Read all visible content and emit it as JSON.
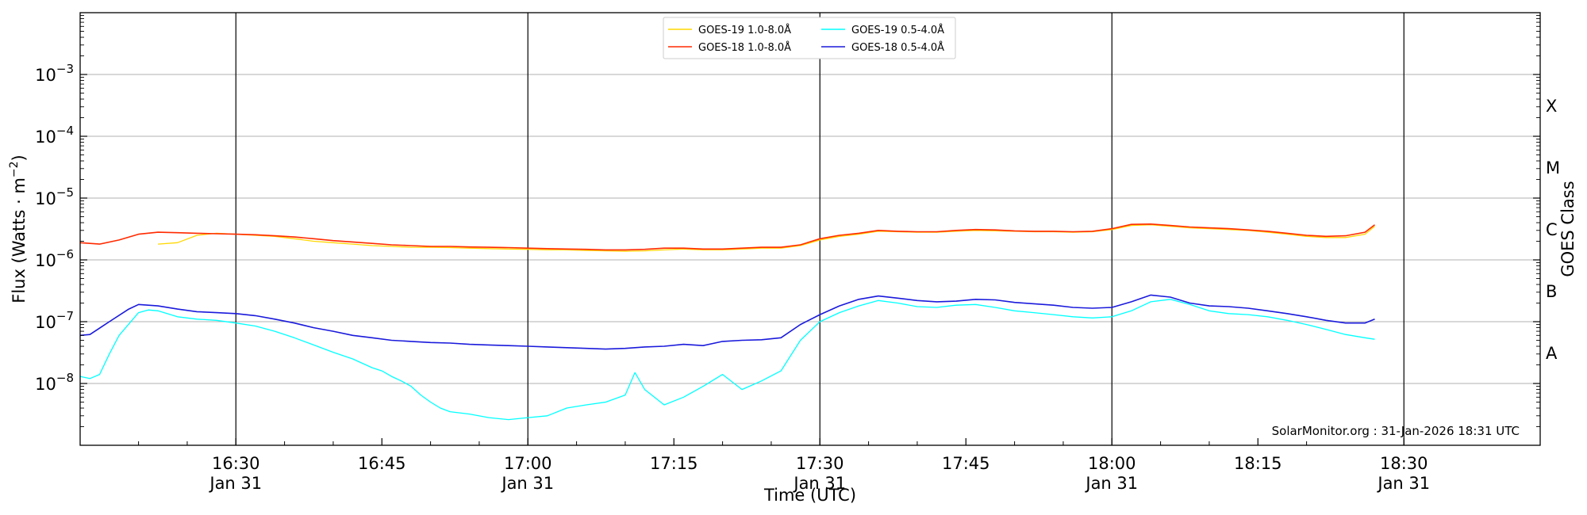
{
  "chart_data": {
    "type": "line",
    "xlabel": "Time (UTC)",
    "ylabel_main": "Flux (Watts · m",
    "ylabel_sup": "−2",
    "ylabel_close": ")",
    "right_label": "GOES Class",
    "y_scale": "log",
    "ylim": [
      1e-09,
      0.01
    ],
    "xlim": [
      "16:14",
      "18:44"
    ],
    "x_ticks": [
      {
        "minute": 30,
        "time": "16:30",
        "date": "Jan 31"
      },
      {
        "minute": 45,
        "time": "16:45",
        "date": ""
      },
      {
        "minute": 60,
        "time": "17:00",
        "date": "Jan 31"
      },
      {
        "minute": 75,
        "time": "17:15",
        "date": ""
      },
      {
        "minute": 90,
        "time": "17:30",
        "date": "Jan 31"
      },
      {
        "minute": 105,
        "time": "17:45",
        "date": ""
      },
      {
        "minute": 120,
        "time": "18:00",
        "date": "Jan 31"
      },
      {
        "minute": 135,
        "time": "18:15",
        "date": ""
      },
      {
        "minute": 150,
        "time": "18:30",
        "date": "Jan 31"
      }
    ],
    "y_ticks": [
      {
        "exp": -8,
        "base": "10",
        "sup": "−8"
      },
      {
        "exp": -7,
        "base": "10",
        "sup": "−7"
      },
      {
        "exp": -6,
        "base": "10",
        "sup": "−6"
      },
      {
        "exp": -5,
        "base": "10",
        "sup": "−5"
      },
      {
        "exp": -4,
        "base": "10",
        "sup": "−4"
      },
      {
        "exp": -3,
        "base": "10",
        "sup": "−3"
      }
    ],
    "goes_classes": [
      {
        "label": "A",
        "exp": -7.5
      },
      {
        "label": "B",
        "exp": -6.5
      },
      {
        "label": "C",
        "exp": -5.5
      },
      {
        "label": "M",
        "exp": -4.5
      },
      {
        "label": "X",
        "exp": -3.5
      }
    ],
    "grid": true,
    "legend_position": "top-center",
    "credit": "SolarMonitor.org : 31-Jan-2026 18:31 UTC",
    "series": [
      {
        "name": "GOES-19 1.0-8.0Å",
        "color": "#FFD700",
        "width": 1.3,
        "x": [
          22,
          24,
          26,
          28,
          30,
          32,
          34,
          36,
          38,
          40,
          42,
          44,
          46,
          48,
          50,
          52,
          54,
          56,
          58,
          60,
          62,
          64,
          66,
          68,
          70,
          72,
          74,
          76,
          78,
          80,
          82,
          84,
          86,
          88,
          90,
          92,
          94,
          96,
          98,
          100,
          102,
          104,
          106,
          108,
          110,
          112,
          114,
          116,
          118,
          120,
          122,
          124,
          126,
          128,
          130,
          132,
          134,
          136,
          138,
          140,
          142,
          144,
          146,
          147
        ],
        "y": [
          1.8e-06,
          1.9e-06,
          2.5e-06,
          2.7e-06,
          2.6e-06,
          2.5e-06,
          2.4e-06,
          2.2e-06,
          2e-06,
          1.9e-06,
          1.8e-06,
          1.7e-06,
          1.65e-06,
          1.6e-06,
          1.6e-06,
          1.58e-06,
          1.55e-06,
          1.52e-06,
          1.5e-06,
          1.48e-06,
          1.45e-06,
          1.45e-06,
          1.42e-06,
          1.4e-06,
          1.38e-06,
          1.4e-06,
          1.45e-06,
          1.5e-06,
          1.45e-06,
          1.45e-06,
          1.5e-06,
          1.55e-06,
          1.55e-06,
          1.7e-06,
          2.1e-06,
          2.4e-06,
          2.6e-06,
          2.9e-06,
          2.85e-06,
          2.8e-06,
          2.8e-06,
          2.9e-06,
          3e-06,
          2.95e-06,
          2.9e-06,
          2.85e-06,
          2.85e-06,
          2.8e-06,
          2.85e-06,
          3.1e-06,
          3.6e-06,
          3.7e-06,
          3.5e-06,
          3.3e-06,
          3.2e-06,
          3.1e-06,
          3e-06,
          2.8e-06,
          2.6e-06,
          2.4e-06,
          2.3e-06,
          2.3e-06,
          2.6e-06,
          3.5e-06
        ]
      },
      {
        "name": "GOES-18 1.0-8.0Å",
        "color": "#FF2A00",
        "width": 1.6,
        "x": [
          14,
          16,
          18,
          20,
          22,
          24,
          26,
          28,
          30,
          32,
          34,
          36,
          38,
          40,
          42,
          44,
          46,
          48,
          50,
          52,
          54,
          56,
          58,
          60,
          62,
          64,
          66,
          68,
          70,
          72,
          74,
          76,
          78,
          80,
          82,
          84,
          86,
          88,
          90,
          92,
          94,
          96,
          98,
          100,
          102,
          104,
          106,
          108,
          110,
          112,
          114,
          116,
          118,
          120,
          122,
          124,
          126,
          128,
          130,
          132,
          134,
          136,
          138,
          140,
          142,
          144,
          146,
          147
        ],
        "y": [
          1.9e-06,
          1.8e-06,
          2.1e-06,
          2.6e-06,
          2.8e-06,
          2.75e-06,
          2.7e-06,
          2.65e-06,
          2.6e-06,
          2.55e-06,
          2.45e-06,
          2.35e-06,
          2.2e-06,
          2.05e-06,
          1.95e-06,
          1.85e-06,
          1.75e-06,
          1.7e-06,
          1.65e-06,
          1.65e-06,
          1.62e-06,
          1.6e-06,
          1.58e-06,
          1.55e-06,
          1.52e-06,
          1.5e-06,
          1.48e-06,
          1.45e-06,
          1.45e-06,
          1.48e-06,
          1.55e-06,
          1.55e-06,
          1.5e-06,
          1.5e-06,
          1.55e-06,
          1.6e-06,
          1.6e-06,
          1.75e-06,
          2.2e-06,
          2.5e-06,
          2.7e-06,
          3e-06,
          2.9e-06,
          2.85e-06,
          2.85e-06,
          3e-06,
          3.1e-06,
          3.05e-06,
          2.95e-06,
          2.9e-06,
          2.9e-06,
          2.85e-06,
          2.9e-06,
          3.2e-06,
          3.75e-06,
          3.8e-06,
          3.6e-06,
          3.4e-06,
          3.3e-06,
          3.2e-06,
          3.05e-06,
          2.9e-06,
          2.7e-06,
          2.5e-06,
          2.4e-06,
          2.45e-06,
          2.8e-06,
          3.7e-06
        ]
      },
      {
        "name": "GOES-19 0.5-4.0Å",
        "color": "#00FFFF",
        "width": 1.3,
        "x": [
          14,
          15,
          16,
          17,
          18,
          20,
          21,
          22,
          24,
          26,
          28,
          30,
          32,
          34,
          36,
          38,
          40,
          42,
          44,
          45,
          46,
          47,
          48,
          49,
          50,
          51,
          52,
          54,
          56,
          58,
          60,
          62,
          64,
          66,
          68,
          70,
          71,
          72,
          74,
          76,
          78,
          80,
          82,
          84,
          86,
          88,
          90,
          92,
          94,
          96,
          98,
          100,
          102,
          104,
          106,
          108,
          110,
          112,
          114,
          116,
          118,
          120,
          122,
          124,
          126,
          128,
          130,
          132,
          134,
          136,
          138,
          140,
          142,
          144,
          146,
          147
        ],
        "y": [
          1.3e-08,
          1.2e-08,
          1.4e-08,
          3e-08,
          6e-08,
          1.4e-07,
          1.55e-07,
          1.5e-07,
          1.2e-07,
          1.1e-07,
          1.05e-07,
          9.5e-08,
          8.5e-08,
          7e-08,
          5.5e-08,
          4.2e-08,
          3.2e-08,
          2.5e-08,
          1.8e-08,
          1.6e-08,
          1.3e-08,
          1.1e-08,
          9e-09,
          6.5e-09,
          5e-09,
          4e-09,
          3.5e-09,
          3.2e-09,
          2.8e-09,
          2.6e-09,
          2.8e-09,
          3e-09,
          4e-09,
          4.5e-09,
          5e-09,
          6.5e-09,
          1.5e-08,
          8e-09,
          4.5e-09,
          6e-09,
          9e-09,
          1.4e-08,
          8e-09,
          1.1e-08,
          1.6e-08,
          5e-08,
          1e-07,
          1.4e-07,
          1.8e-07,
          2.2e-07,
          2e-07,
          1.75e-07,
          1.7e-07,
          1.85e-07,
          1.9e-07,
          1.7e-07,
          1.5e-07,
          1.4e-07,
          1.3e-07,
          1.2e-07,
          1.15e-07,
          1.2e-07,
          1.5e-07,
          2.1e-07,
          2.3e-07,
          1.9e-07,
          1.5e-07,
          1.35e-07,
          1.3e-07,
          1.2e-07,
          1.05e-07,
          9e-08,
          7.5e-08,
          6.2e-08,
          5.5e-08,
          5.2e-08
        ]
      },
      {
        "name": "GOES-18 0.5-4.0Å",
        "color": "#1A1ADC",
        "width": 1.6,
        "x": [
          14,
          15,
          17,
          19,
          20,
          22,
          24,
          26,
          28,
          30,
          32,
          34,
          36,
          38,
          40,
          42,
          44,
          46,
          48,
          50,
          52,
          54,
          56,
          58,
          60,
          62,
          64,
          66,
          68,
          70,
          72,
          74,
          76,
          78,
          80,
          82,
          84,
          86,
          88,
          90,
          92,
          94,
          96,
          98,
          100,
          102,
          104,
          106,
          108,
          110,
          112,
          114,
          116,
          118,
          120,
          122,
          124,
          126,
          128,
          130,
          132,
          134,
          136,
          138,
          140,
          142,
          144,
          146,
          147
        ],
        "y": [
          6e-08,
          6.2e-08,
          1e-07,
          1.6e-07,
          1.9e-07,
          1.8e-07,
          1.6e-07,
          1.45e-07,
          1.4e-07,
          1.35e-07,
          1.25e-07,
          1.1e-07,
          9.5e-08,
          8e-08,
          7e-08,
          6e-08,
          5.5e-08,
          5e-08,
          4.8e-08,
          4.6e-08,
          4.5e-08,
          4.3e-08,
          4.2e-08,
          4.1e-08,
          4e-08,
          3.9e-08,
          3.8e-08,
          3.7e-08,
          3.6e-08,
          3.7e-08,
          3.9e-08,
          4e-08,
          4.3e-08,
          4.1e-08,
          4.8e-08,
          5e-08,
          5.1e-08,
          5.5e-08,
          9e-08,
          1.3e-07,
          1.8e-07,
          2.3e-07,
          2.6e-07,
          2.4e-07,
          2.2e-07,
          2.1e-07,
          2.15e-07,
          2.3e-07,
          2.25e-07,
          2.05e-07,
          1.95e-07,
          1.85e-07,
          1.7e-07,
          1.65e-07,
          1.7e-07,
          2.1e-07,
          2.7e-07,
          2.5e-07,
          2e-07,
          1.8e-07,
          1.75e-07,
          1.65e-07,
          1.5e-07,
          1.35e-07,
          1.2e-07,
          1.05e-07,
          9.5e-08,
          9.5e-08,
          1.1e-07
        ]
      }
    ]
  }
}
